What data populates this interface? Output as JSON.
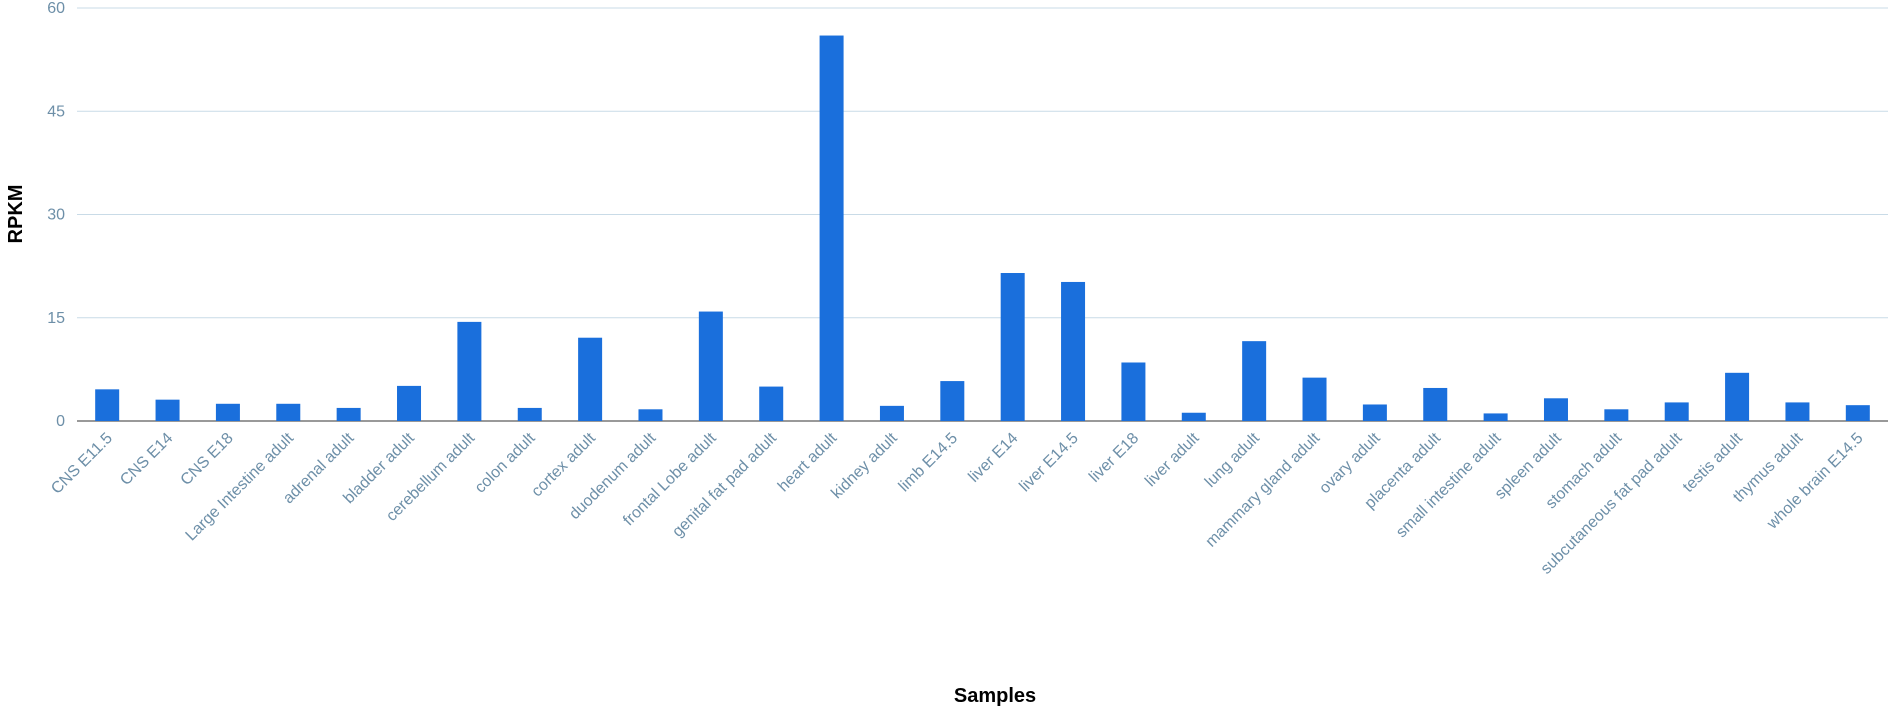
{
  "chart_data": {
    "type": "bar",
    "title": "",
    "xlabel": "Samples",
    "ylabel": "RPKM",
    "ylim": [
      0,
      60
    ],
    "yticks": [
      0,
      15,
      30,
      45,
      60
    ],
    "grid": true,
    "categories": [
      "CNS E11.5",
      "CNS E14",
      "CNS E18",
      "Large Intestine adult",
      "adrenal adult",
      "bladder adult",
      "cerebellum adult",
      "colon adult",
      "cortex adult",
      "duodenum adult",
      "frontal Lobe adult",
      "genital fat pad adult",
      "heart adult",
      "kidney adult",
      "limb E14.5",
      "liver E14",
      "liver E14.5",
      "liver E18",
      "liver adult",
      "lung adult",
      "mammary gland adult",
      "ovary adult",
      "placenta adult",
      "small intestine adult",
      "spleen adult",
      "stomach adult",
      "subcutaneous fat pad adult",
      "testis adult",
      "thymus adult",
      "whole brain E14.5"
    ],
    "values": [
      4.6,
      3.1,
      2.5,
      2.5,
      1.9,
      5.1,
      14.4,
      1.9,
      12.1,
      1.7,
      15.9,
      5.0,
      56.0,
      2.2,
      5.8,
      21.5,
      20.2,
      8.5,
      1.2,
      11.6,
      6.3,
      2.4,
      4.8,
      1.1,
      3.3,
      1.7,
      2.7,
      7.0,
      2.7,
      2.3
    ],
    "bar_color": "#1a6fdc",
    "grid_color": "#c9dbe7",
    "tick_color": "#6d8fa8"
  }
}
